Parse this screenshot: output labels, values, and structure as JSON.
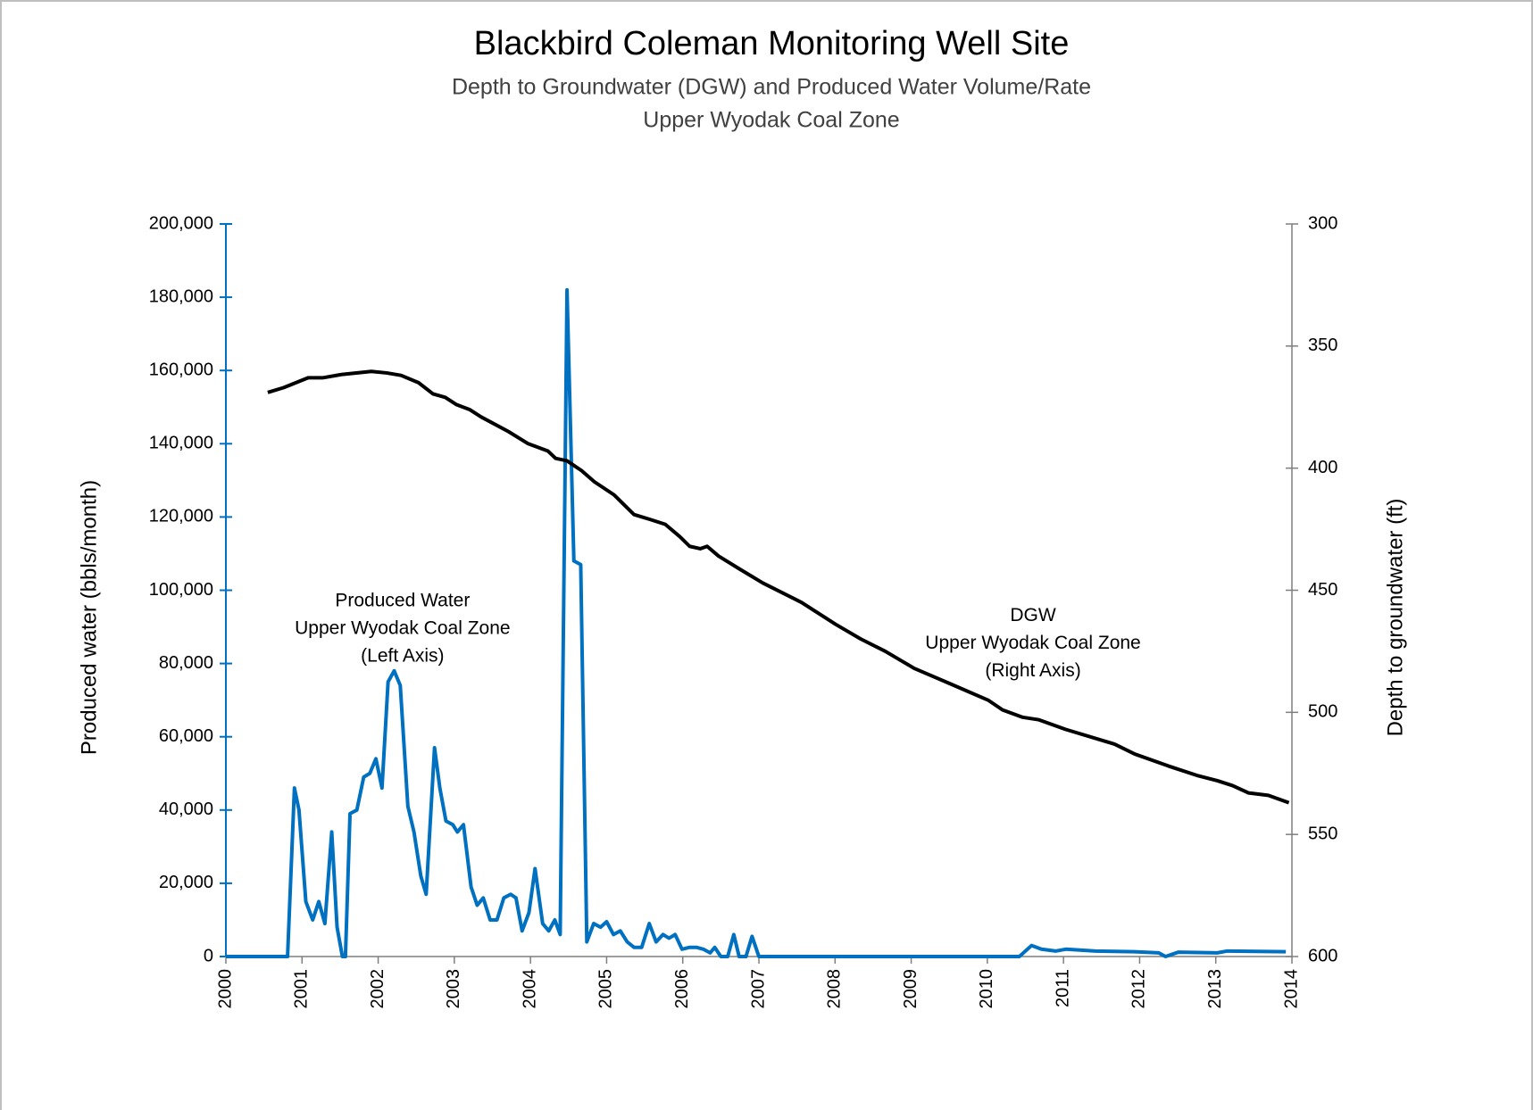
{
  "chart_data": {
    "type": "line",
    "title": "Blackbird Coleman Monitoring Well Site",
    "subtitle": [
      "Depth to Groundwater (DGW) and Produced Water Volume/Rate",
      "Upper Wyodak Coal Zone"
    ],
    "ylabel": "Produced water (bbls/month)",
    "y2label": "Depth to groundwater (ft)",
    "annotations": [
      {
        "lines": [
          "Produced Water",
          "Upper Wyodak Coal Zone",
          "(Left Axis)"
        ],
        "x": 2002.32,
        "y": 97000
      },
      {
        "lines": [
          "DGW",
          "Upper Wyodak Coal Zone",
          "(Right Axis)"
        ],
        "x": 2010.6,
        "y": 93000
      }
    ],
    "xlim": [
      2000,
      2014
    ],
    "xticks": [
      2000,
      2001,
      2002,
      2003,
      2004,
      2005,
      2006,
      2007,
      2008,
      2009,
      2010,
      2011,
      2012,
      2013,
      2014
    ],
    "ylim": [
      0,
      200000
    ],
    "yticks": [
      0,
      {
        "value": 20000,
        "label": "20,000"
      },
      {
        "value": 40000,
        "label": "40,000"
      },
      {
        "value": 60000,
        "label": "60,000"
      },
      {
        "value": 80000,
        "label": "80,000"
      },
      {
        "value": 100000,
        "label": "100,000"
      },
      {
        "value": 120000,
        "label": "120,000"
      },
      {
        "value": 140000,
        "label": "140,000"
      },
      {
        "value": 160000,
        "label": "160,000"
      },
      {
        "value": 180000,
        "label": "180,000"
      },
      {
        "value": 200000,
        "label": "200,000"
      }
    ],
    "y2lim": [
      300,
      600
    ],
    "y2_inverted": true,
    "y2ticks": [
      300,
      350,
      400,
      450,
      500,
      550,
      600
    ],
    "grid": false,
    "series": [
      {
        "name": "Produced Water",
        "color": "#0070c0",
        "axis": "y",
        "x": [
          2000,
          2000.81,
          2000.9,
          2000.96,
          2001.05,
          2001.14,
          2001.22,
          2001.3,
          2001.39,
          2001.46,
          2001.53,
          2001.57,
          2001.63,
          2001.72,
          2001.81,
          2001.89,
          2001.97,
          2002.05,
          2002.13,
          2002.21,
          2002.29,
          2002.39,
          2002.47,
          2002.56,
          2002.63,
          2002.74,
          2002.81,
          2002.89,
          2002.98,
          2003.04,
          2003.12,
          2003.22,
          2003.3,
          2003.38,
          2003.47,
          2003.56,
          2003.65,
          2003.74,
          2003.81,
          2003.89,
          2003.98,
          2004.06,
          2004.16,
          2004.24,
          2004.32,
          2004.39,
          2004.48,
          2004.57,
          2004.66,
          2004.74,
          2004.83,
          2004.92,
          2005,
          2005.09,
          2005.18,
          2005.27,
          2005.36,
          2005.46,
          2005.56,
          2005.65,
          2005.74,
          2005.82,
          2005.9,
          2005.99,
          2006.09,
          2006.18,
          2006.27,
          2006.36,
          2006.42,
          2006.5,
          2006.59,
          2006.67,
          2006.74,
          2006.83,
          2006.91,
          2007,
          2010.42,
          2010.58,
          2010.71,
          2010.9,
          2011.03,
          2011.42,
          2011.93,
          2012.25,
          2012.34,
          2012.51,
          2013.02,
          2013.15,
          2013.92
        ],
        "values": [
          0,
          0,
          46000,
          40000,
          15000,
          10000,
          15000,
          9000,
          34000,
          8000,
          0,
          0,
          39000,
          40000,
          49000,
          50000,
          54000,
          46000,
          75000,
          78000,
          74000,
          41000,
          34000,
          22000,
          17000,
          57000,
          46000,
          37000,
          36000,
          34000,
          36000,
          19000,
          14000,
          16000,
          10000,
          10000,
          16000,
          17000,
          16000,
          7000,
          12000,
          24000,
          9000,
          7000,
          10000,
          6000,
          182000,
          108000,
          107000,
          4000,
          9000,
          8000,
          9500,
          6000,
          7000,
          4000,
          2500,
          2500,
          9000,
          4000,
          6000,
          5000,
          6000,
          2000,
          2500,
          2500,
          2000,
          1000,
          2500,
          0,
          0,
          6000,
          0,
          0,
          5500,
          0,
          0,
          3000,
          2000,
          1500,
          2000,
          1500,
          1300,
          1000,
          0,
          1200,
          1000,
          1500,
          1300
        ]
      },
      {
        "name": "DGW",
        "color": "#000000",
        "axis": "y2",
        "x": [
          2000.55,
          2000.76,
          2001.08,
          2001.27,
          2001.53,
          2001.91,
          2002.11,
          2002.3,
          2002.53,
          2002.72,
          2002.88,
          2003.03,
          2003.2,
          2003.35,
          2003.71,
          2003.97,
          2004.23,
          2004.33,
          2004.48,
          2004.67,
          2004.84,
          2005.1,
          2005.36,
          2005.57,
          2005.77,
          2005.96,
          2006.09,
          2006.23,
          2006.32,
          2006.47,
          2006.73,
          2007.05,
          2007.56,
          2008.01,
          2008.34,
          2008.66,
          2009.04,
          2009.49,
          2010.01,
          2010.2,
          2010.46,
          2010.67,
          2011.03,
          2011.67,
          2011.93,
          2012.38,
          2012.77,
          2013.02,
          2013.22,
          2013.43,
          2013.69,
          2013.96
        ],
        "values": [
          369,
          367,
          363,
          363,
          361.6,
          360.4,
          361,
          362,
          365,
          369.6,
          371,
          374,
          376,
          379,
          385,
          390,
          393,
          396,
          397,
          401,
          405.6,
          411,
          419,
          421,
          423,
          428,
          432,
          433,
          432,
          436,
          441,
          447,
          455,
          464,
          470,
          475,
          482,
          488,
          495,
          499,
          502,
          503,
          507,
          513,
          517,
          522,
          526,
          528,
          530,
          533,
          534,
          537
        ]
      }
    ]
  }
}
